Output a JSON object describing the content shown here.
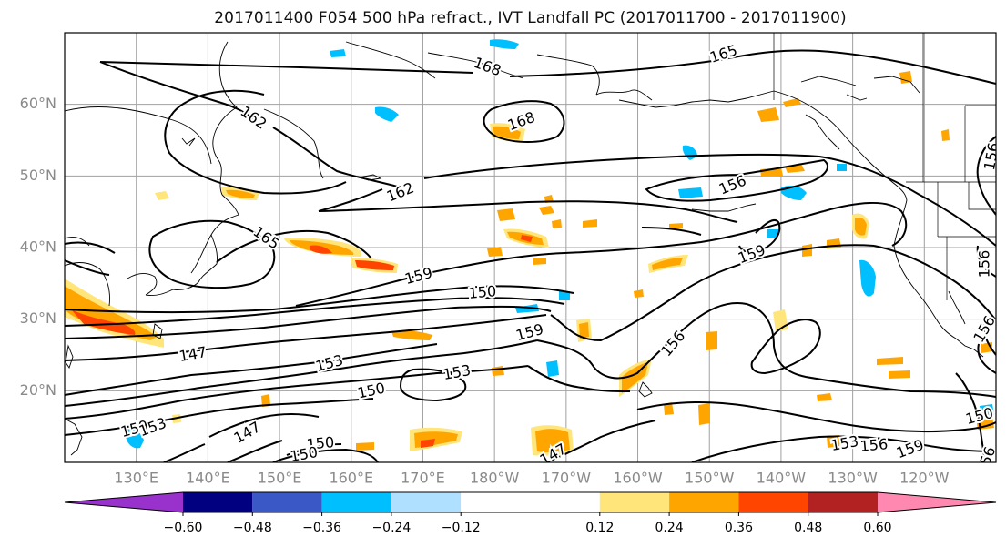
{
  "title": "2017011400 F054 500 hPa refract., IVT Landfall PC (2017011700 - 2017011900)",
  "map": {
    "lat_labels": [
      "60°N",
      "50°N",
      "40°N",
      "30°N",
      "20°N"
    ],
    "lat_values": [
      60,
      50,
      40,
      30,
      20
    ],
    "lon_labels": [
      "130°E",
      "140°E",
      "150°E",
      "160°E",
      "170°E",
      "180°W",
      "170°W",
      "160°W",
      "150°W",
      "140°W",
      "130°W",
      "120°W"
    ],
    "lon_values": [
      130,
      140,
      150,
      160,
      170,
      180,
      190,
      200,
      210,
      220,
      230,
      240
    ],
    "lat_range": [
      10,
      70
    ],
    "lon_range": [
      120,
      250
    ],
    "tick_label_color": "#8a8a8a",
    "grid_color": "#a0a0a0",
    "contour_color": "#000000"
  },
  "contour_labels": [
    {
      "text": "168",
      "rot": 20
    },
    {
      "text": "165",
      "rot": -18
    },
    {
      "text": "162",
      "rot": 35
    },
    {
      "text": "168",
      "rot": -20
    },
    {
      "text": "162",
      "rot": -22
    },
    {
      "text": "156",
      "rot": -22
    },
    {
      "text": "156",
      "rot": -80
    },
    {
      "text": "165",
      "rot": 35
    },
    {
      "text": "159",
      "rot": -15
    },
    {
      "text": "150",
      "rot": -5
    },
    {
      "text": "159",
      "rot": -15
    },
    {
      "text": "156",
      "rot": -50
    },
    {
      "text": "159",
      "rot": -20
    },
    {
      "text": "147",
      "rot": -10
    },
    {
      "text": "153",
      "rot": -15
    },
    {
      "text": "153",
      "rot": -10
    },
    {
      "text": "150",
      "rot": -12
    },
    {
      "text": "156",
      "rot": -90
    },
    {
      "text": "156",
      "rot": -60
    },
    {
      "text": "159",
      "rot": -15
    },
    {
      "text": "153",
      "rot": -20
    },
    {
      "text": "147",
      "rot": -30
    },
    {
      "text": "150",
      "rot": -5
    },
    {
      "text": "150",
      "rot": -10
    },
    {
      "text": "147",
      "rot": -30
    },
    {
      "text": "153",
      "rot": -10
    },
    {
      "text": "156",
      "rot": -5
    },
    {
      "text": "159",
      "rot": -20
    },
    {
      "text": "150",
      "rot": -15
    },
    {
      "text": "156",
      "rot": -70
    }
  ],
  "colorbar": {
    "tick_labels": [
      "−0.60",
      "−0.48",
      "−0.36",
      "−0.24",
      "−0.12",
      "0.12",
      "0.24",
      "0.36",
      "0.48",
      "0.60"
    ],
    "tick_values": [
      -0.6,
      -0.48,
      -0.36,
      -0.24,
      -0.12,
      0.12,
      0.24,
      0.36,
      0.48,
      0.6
    ],
    "under_color": "#9932cc",
    "over_color": "#ff88b0",
    "segment_colors": [
      "#000080",
      "#3a59c7",
      "#00bfff",
      "#b0e0ff",
      "#ffffff",
      "#ffe57a",
      "#ffa500",
      "#ff4500",
      "#b22222"
    ]
  },
  "fill_colors": {
    "pos_low": "#ffe57a",
    "pos_mid": "#ffa500",
    "pos_high": "#ff4500",
    "pos_max": "#b22222",
    "neg_low": "#b0e0ff",
    "neg_mid": "#00bfff",
    "neg_high": "#3a59c7"
  }
}
